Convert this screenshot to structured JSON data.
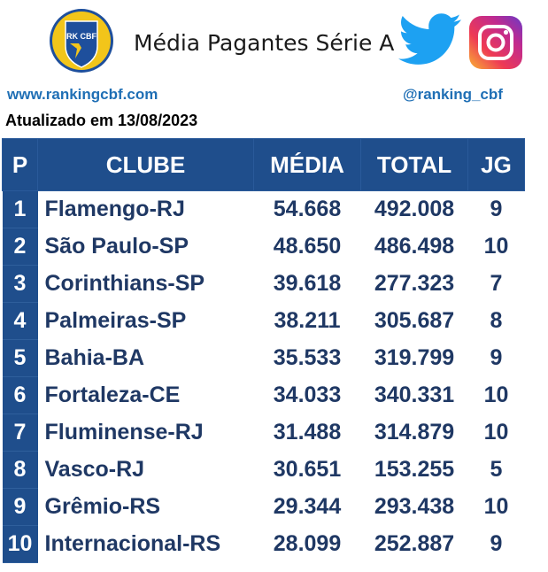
{
  "header": {
    "logo_text": "RK CBF",
    "title": "Média Pagantes Série A",
    "site": "www.rankingcbf.com",
    "handle": "@ranking_cbf",
    "updated": "Atualizado em 13/08/2023",
    "icons": [
      "shield-logo",
      "twitter-icon",
      "instagram-icon"
    ]
  },
  "table": {
    "headers": {
      "pos": "P",
      "club": "CLUBE",
      "media": "MÉDIA",
      "total": "TOTAL",
      "jg": "JG"
    },
    "rows": [
      {
        "pos": "1",
        "club": "Flamengo-RJ",
        "media": "54.668",
        "total": "492.008",
        "jg": "9"
      },
      {
        "pos": "2",
        "club": "São Paulo-SP",
        "media": "48.650",
        "total": "486.498",
        "jg": "10"
      },
      {
        "pos": "3",
        "club": "Corinthians-SP",
        "media": "39.618",
        "total": "277.323",
        "jg": "7"
      },
      {
        "pos": "4",
        "club": "Palmeiras-SP",
        "media": "38.211",
        "total": "305.687",
        "jg": "8"
      },
      {
        "pos": "5",
        "club": "Bahia-BA",
        "media": "35.533",
        "total": "319.799",
        "jg": "9"
      },
      {
        "pos": "6",
        "club": "Fortaleza-CE",
        "media": "34.033",
        "total": "340.331",
        "jg": "10"
      },
      {
        "pos": "7",
        "club": "Fluminense-RJ",
        "media": "31.488",
        "total": "314.879",
        "jg": "10"
      },
      {
        "pos": "8",
        "club": "Vasco-RJ",
        "media": "30.651",
        "total": "153.255",
        "jg": "5"
      },
      {
        "pos": "9",
        "club": "Grêmio-RS",
        "media": "29.344",
        "total": "293.438",
        "jg": "10"
      },
      {
        "pos": "10",
        "club": "Internacional-RS",
        "media": "28.099",
        "total": "252.887",
        "jg": "9"
      }
    ]
  },
  "colors": {
    "header_bg": "#1f4e8c",
    "text_dark_blue": "#1f3864",
    "link_blue": "#1f6fb5",
    "logo_yellow": "#f2c51a",
    "logo_blue": "#1e4f9c",
    "twitter_blue": "#1da1f2"
  }
}
